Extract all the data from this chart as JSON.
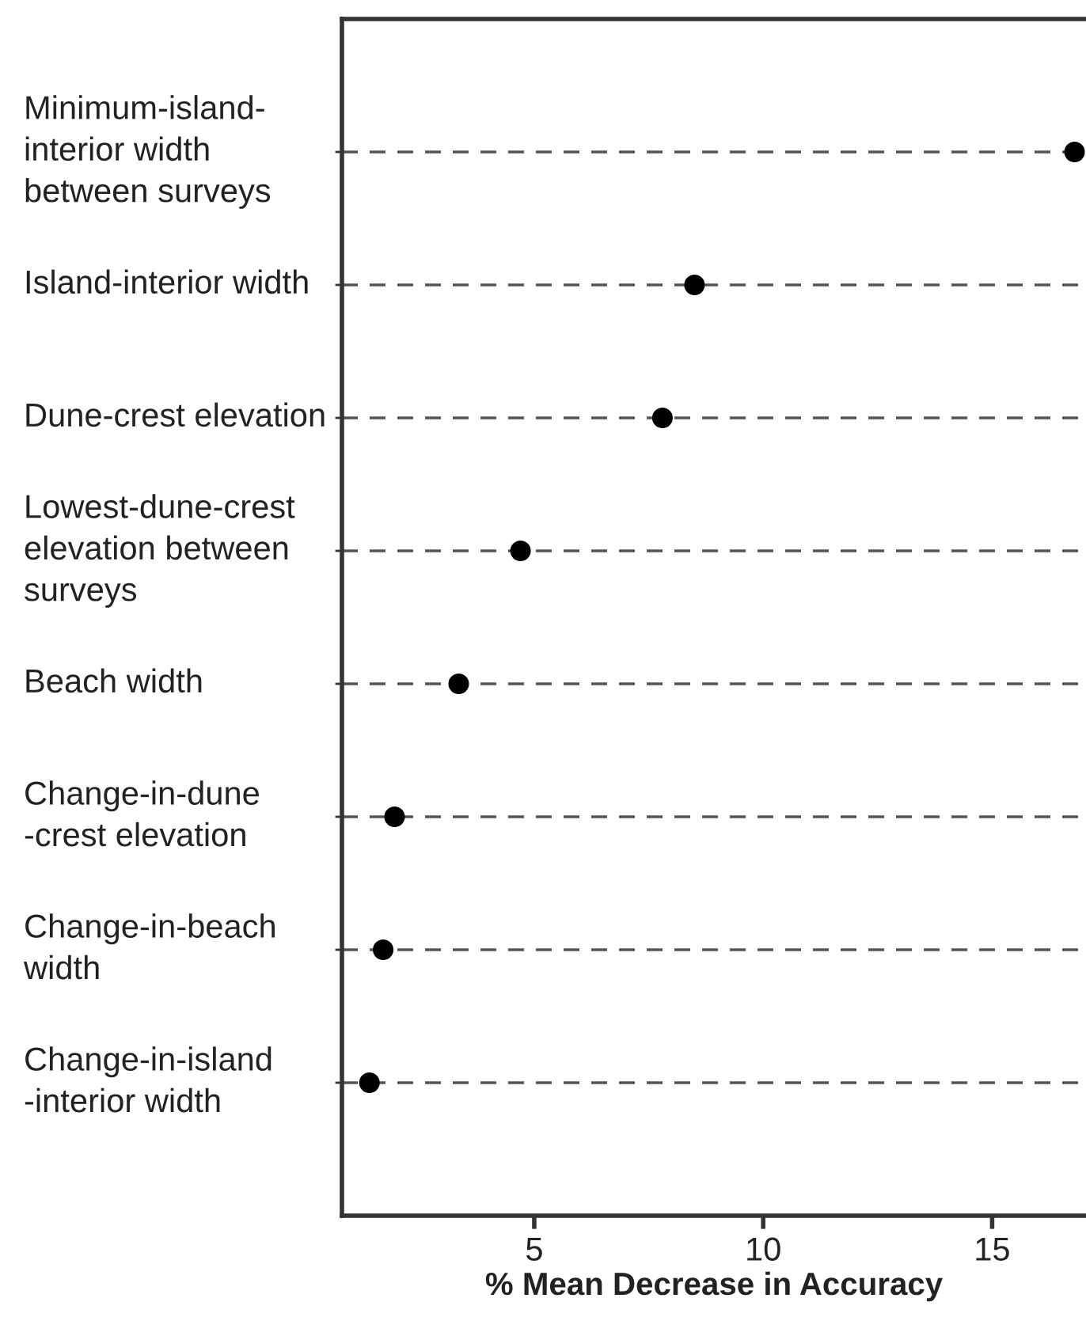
{
  "chart_data": {
    "type": "scatter",
    "orientation": "horizontal",
    "xlabel": "% Mean Decrease in Accuracy",
    "categories": [
      "Minimum-island-\ninterior width\nbetween surveys",
      "Island-interior width",
      "Dune-crest elevation",
      "Lowest-dune-crest\nelevation between\nsurveys",
      "Beach width",
      "Change-in-dune\n-crest elevation",
      "Change-in-beach\nwidth",
      "Change-in-island\n-interior width"
    ],
    "values": [
      16.8,
      8.5,
      7.8,
      4.7,
      3.35,
      1.95,
      1.7,
      1.4
    ],
    "color": "#000000",
    "marker": "circle",
    "xlim": [
      0.8,
      17.05
    ],
    "xticks": [
      5,
      10,
      15
    ],
    "grid": "y",
    "line_style": "dashed"
  }
}
